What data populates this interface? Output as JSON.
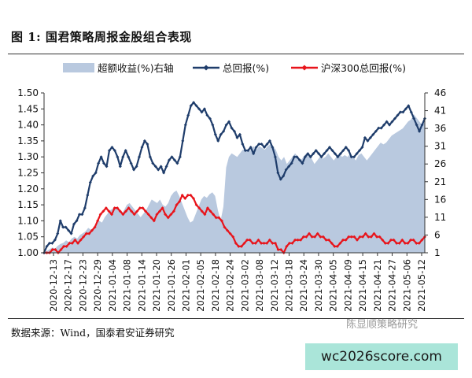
{
  "figure_title": "图 1:  国君策略周报金股组合表现",
  "source_text": "数据来源：Wind，国泰君安证券研究",
  "watermark_text": "陈显顺策略研究",
  "site_badge": "wc2026score.com",
  "chart_data": {
    "type": "line",
    "title": "",
    "left_axis": {
      "min": 1.0,
      "max": 1.5,
      "ticks": [
        "1.00",
        "1.05",
        "1.10",
        "1.15",
        "1.20",
        "1.25",
        "1.30",
        "1.35",
        "1.40",
        "1.45",
        "1.50"
      ]
    },
    "right_axis": {
      "min": 1,
      "max": 46,
      "ticks": [
        "1",
        "6",
        "11",
        "16",
        "21",
        "26",
        "31",
        "36",
        "41",
        "46"
      ]
    },
    "x_tick_labels": [
      "2020-12-13",
      "2020-12-17",
      "2020-12-23",
      "2020-12-29",
      "2021-01-04",
      "2021-01-08",
      "2021-01-14",
      "2021-01-20",
      "2021-01-26",
      "2021-02-01",
      "2021-02-05",
      "2021-02-18",
      "2021-02-24",
      "2021-03-02",
      "2021-03-08",
      "2021-03-12",
      "2021-03-18",
      "2021-03-24",
      "2021-03-30",
      "2021-04-05",
      "2021-04-09",
      "2021-04-15",
      "2021-04-21",
      "2021-04-27",
      "2021-05-06",
      "2021-05-12"
    ],
    "legend": [
      {
        "name": "超额收益(%)右轴",
        "kind": "area",
        "color": "#b9c9df"
      },
      {
        "name": "总回报(%)",
        "kind": "line",
        "color": "#1f3d6b"
      },
      {
        "name": "沪深300总回报(%)",
        "kind": "line",
        "color": "#e8141b"
      }
    ],
    "series": [
      {
        "name": "超额收益(%)右轴",
        "axis": "right",
        "values": [
          1,
          1.5,
          2,
          2.5,
          2.2,
          3,
          3.5,
          3.8,
          4.5,
          4,
          5,
          5.5,
          5,
          6,
          6.5,
          7,
          8,
          7.5,
          8,
          9,
          10,
          9.5,
          11,
          12,
          13,
          13.5,
          14,
          13,
          12,
          13,
          14.5,
          15,
          14,
          13,
          12,
          11,
          12,
          13,
          14.5,
          16,
          15.5,
          15,
          16,
          14.5,
          14,
          15,
          17,
          18,
          18.5,
          17,
          15,
          13,
          11,
          9.5,
          10,
          12,
          14,
          16,
          17,
          16.5,
          17.5,
          18,
          17,
          13,
          10,
          14,
          25,
          28,
          29,
          28.5,
          28,
          29,
          30,
          30,
          29.5,
          30,
          31,
          30,
          31,
          30.5,
          30,
          31,
          31.5,
          31,
          30,
          28,
          27,
          28,
          26,
          27,
          28,
          29,
          28,
          27,
          28,
          29,
          28.5,
          27.5,
          26,
          27,
          28,
          27.5,
          28,
          29,
          28,
          27,
          28,
          29,
          28,
          28.5,
          28,
          29,
          28,
          27,
          28.5,
          29,
          28,
          27,
          28,
          29,
          30,
          31,
          32,
          31.5,
          32,
          33,
          34,
          34.5,
          35,
          35.5,
          36,
          37,
          38,
          38.5,
          40,
          39,
          38,
          37,
          38
        ]
      },
      {
        "name": "总回报(%)",
        "axis": "left",
        "values": [
          1.0,
          1.02,
          1.03,
          1.03,
          1.04,
          1.06,
          1.1,
          1.08,
          1.08,
          1.07,
          1.06,
          1.09,
          1.1,
          1.12,
          1.12,
          1.14,
          1.18,
          1.22,
          1.24,
          1.25,
          1.28,
          1.3,
          1.28,
          1.27,
          1.32,
          1.33,
          1.32,
          1.3,
          1.27,
          1.3,
          1.32,
          1.3,
          1.28,
          1.26,
          1.27,
          1.3,
          1.33,
          1.35,
          1.34,
          1.3,
          1.28,
          1.27,
          1.26,
          1.27,
          1.25,
          1.27,
          1.29,
          1.3,
          1.29,
          1.28,
          1.3,
          1.35,
          1.4,
          1.43,
          1.46,
          1.47,
          1.46,
          1.45,
          1.44,
          1.45,
          1.43,
          1.42,
          1.4,
          1.37,
          1.35,
          1.37,
          1.38,
          1.4,
          1.41,
          1.39,
          1.38,
          1.36,
          1.37,
          1.34,
          1.32,
          1.32,
          1.33,
          1.31,
          1.33,
          1.34,
          1.34,
          1.33,
          1.34,
          1.35,
          1.33,
          1.3,
          1.25,
          1.23,
          1.24,
          1.26,
          1.27,
          1.28,
          1.3,
          1.3,
          1.29,
          1.28,
          1.3,
          1.31,
          1.3,
          1.31,
          1.32,
          1.31,
          1.3,
          1.31,
          1.32,
          1.33,
          1.32,
          1.31,
          1.3,
          1.31,
          1.32,
          1.33,
          1.32,
          1.3,
          1.3,
          1.31,
          1.32,
          1.33,
          1.36,
          1.35,
          1.36,
          1.37,
          1.38,
          1.39,
          1.39,
          1.4,
          1.41,
          1.4,
          1.41,
          1.42,
          1.43,
          1.44,
          1.44,
          1.45,
          1.46,
          1.44,
          1.42,
          1.4,
          1.38,
          1.4,
          1.42
        ]
      },
      {
        "name": "沪深300总回报(%)",
        "axis": "left",
        "values": [
          1.0,
          1.0,
          1.0,
          1.01,
          1.01,
          1.0,
          1.01,
          1.02,
          1.02,
          1.03,
          1.03,
          1.04,
          1.03,
          1.04,
          1.05,
          1.06,
          1.06,
          1.07,
          1.08,
          1.1,
          1.12,
          1.13,
          1.14,
          1.13,
          1.12,
          1.14,
          1.14,
          1.13,
          1.12,
          1.13,
          1.14,
          1.13,
          1.12,
          1.13,
          1.14,
          1.14,
          1.13,
          1.12,
          1.11,
          1.1,
          1.12,
          1.13,
          1.14,
          1.12,
          1.11,
          1.12,
          1.13,
          1.15,
          1.16,
          1.18,
          1.17,
          1.18,
          1.18,
          1.17,
          1.15,
          1.14,
          1.13,
          1.12,
          1.14,
          1.13,
          1.12,
          1.11,
          1.11,
          1.1,
          1.08,
          1.07,
          1.06,
          1.05,
          1.03,
          1.02,
          1.02,
          1.03,
          1.04,
          1.04,
          1.03,
          1.03,
          1.04,
          1.03,
          1.03,
          1.03,
          1.04,
          1.03,
          1.03,
          1.01,
          1.01,
          1.0,
          1.02,
          1.03,
          1.03,
          1.04,
          1.04,
          1.04,
          1.05,
          1.05,
          1.06,
          1.05,
          1.05,
          1.06,
          1.05,
          1.05,
          1.04,
          1.04,
          1.03,
          1.02,
          1.02,
          1.03,
          1.04,
          1.04,
          1.05,
          1.05,
          1.05,
          1.04,
          1.05,
          1.05,
          1.06,
          1.05,
          1.05,
          1.06,
          1.05,
          1.05,
          1.04,
          1.03,
          1.03,
          1.04,
          1.04,
          1.03,
          1.03,
          1.04,
          1.03,
          1.03,
          1.04,
          1.04,
          1.03,
          1.03,
          1.04,
          1.05
        ]
      }
    ]
  }
}
